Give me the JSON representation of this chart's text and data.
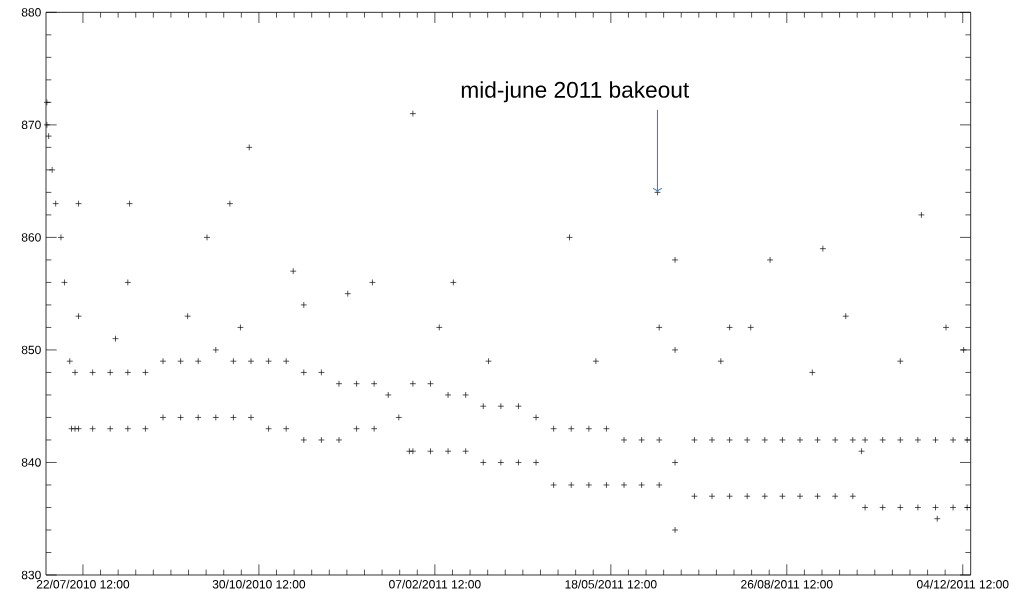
{
  "chart_data": {
    "type": "scatter",
    "marker": "cross",
    "grid": false,
    "xlim": [
      "2010-07-01T12:00",
      "2011-12-09T00:00"
    ],
    "xticks": [
      {
        "value": "2010-07-22T12:00",
        "label": "22/07/2010 12:00"
      },
      {
        "value": "2010-10-30T12:00",
        "label": "30/10/2010 12:00"
      },
      {
        "value": "2011-02-07T12:00",
        "label": "07/02/2011 12:00"
      },
      {
        "value": "2011-05-18T12:00",
        "label": "18/05/2011 12:00"
      },
      {
        "value": "2011-08-26T12:00",
        "label": "26/08/2011 12:00"
      },
      {
        "value": "2011-12-04T12:00",
        "label": "04/12/2011 12:00"
      }
    ],
    "ylim": [
      830,
      880
    ],
    "yticks": [
      830,
      840,
      850,
      860,
      870,
      880
    ],
    "annotations": [
      {
        "text": "mid-june 2011 bakeout",
        "x": "2011-06-14",
        "y": 864
      }
    ],
    "series": [
      {
        "color": "#000000",
        "x": [
          "2010-07-02",
          "2010-07-02",
          "2010-07-03",
          "2010-07-05",
          "2010-07-07",
          "2010-07-10",
          "2010-07-12",
          "2010-07-15",
          "2010-07-16",
          "2010-07-20",
          "2010-07-20",
          "2010-07-20",
          "2010-07-18",
          "2010-07-18",
          "2010-07-28",
          "2010-07-28",
          "2010-08-07",
          "2010-08-07",
          "2010-08-17",
          "2010-08-17",
          "2010-08-27",
          "2010-08-27",
          "2010-09-06",
          "2010-09-06",
          "2010-09-16",
          "2010-09-16",
          "2010-09-26",
          "2010-09-26",
          "2010-10-06",
          "2010-10-06",
          "2010-10-16",
          "2010-10-16",
          "2010-10-26",
          "2010-10-26",
          "2010-11-05",
          "2010-11-05",
          "2010-11-15",
          "2010-11-15",
          "2010-11-25",
          "2010-11-25",
          "2010-12-05",
          "2010-12-05",
          "2010-12-15",
          "2010-12-15",
          "2010-12-25",
          "2010-12-25",
          "2011-01-04",
          "2011-01-04",
          "2011-01-12",
          "2011-01-18",
          "2011-01-24",
          "2011-01-26",
          "2011-01-26",
          "2011-02-05",
          "2011-02-05",
          "2011-02-15",
          "2011-02-15",
          "2011-02-25",
          "2011-02-25",
          "2011-03-07",
          "2011-03-07",
          "2011-03-17",
          "2011-03-17",
          "2011-03-27",
          "2011-03-27",
          "2011-04-06",
          "2011-04-06",
          "2011-04-16",
          "2011-04-16",
          "2011-04-26",
          "2011-04-26",
          "2011-05-06",
          "2011-05-06",
          "2011-05-16",
          "2011-05-16",
          "2011-05-26",
          "2011-05-26",
          "2011-06-05",
          "2011-06-05",
          "2011-06-15",
          "2011-06-15",
          "2011-06-24",
          "2011-06-24",
          "2011-06-24",
          "2011-06-24",
          "2011-07-05",
          "2011-07-05",
          "2011-07-15",
          "2011-07-15",
          "2011-07-25",
          "2011-07-25",
          "2011-08-04",
          "2011-08-04",
          "2011-08-14",
          "2011-08-14",
          "2011-08-24",
          "2011-08-24",
          "2011-09-03",
          "2011-09-03",
          "2011-09-13",
          "2011-09-13",
          "2011-09-23",
          "2011-09-23",
          "2011-10-03",
          "2011-10-03",
          "2011-10-08",
          "2011-10-10",
          "2011-10-10",
          "2011-10-20",
          "2011-10-20",
          "2011-10-30",
          "2011-10-30",
          "2011-11-09",
          "2011-11-09",
          "2011-11-19",
          "2011-11-19",
          "2011-11-20",
          "2011-11-29",
          "2011-11-29",
          "2011-12-07",
          "2011-12-07",
          "2010-08-18",
          "2010-08-17",
          "2010-10-01",
          "2010-10-14",
          "2010-10-25",
          "2010-11-19",
          "2011-01-26",
          "2011-02-18",
          "2011-01-03",
          "2011-04-25",
          "2011-08-17",
          "2011-09-16",
          "2011-11-11",
          "2011-09-29",
          "2011-08-06",
          "2011-07-25",
          "2010-08-10",
          "2010-09-20",
          "2010-10-20",
          "2010-11-25",
          "2010-12-20",
          "2011-02-10",
          "2011-03-10",
          "2011-05-10",
          "2011-06-15",
          "2011-07-20",
          "2011-09-10",
          "2011-10-30",
          "2011-11-25",
          "2011-12-05",
          "2011-06-14"
        ],
        "values": [
          872,
          870,
          869,
          866,
          863,
          860,
          856,
          849,
          843,
          863,
          853,
          843,
          848,
          843,
          848,
          843,
          848,
          843,
          848,
          843,
          848,
          843,
          849,
          844,
          849,
          844,
          849,
          844,
          850,
          844,
          849,
          844,
          849,
          844,
          849,
          843,
          849,
          843,
          848,
          842,
          848,
          842,
          847,
          842,
          847,
          843,
          847,
          843,
          846,
          844,
          841,
          847,
          841,
          847,
          841,
          846,
          841,
          846,
          841,
          845,
          840,
          845,
          840,
          845,
          840,
          844,
          840,
          843,
          838,
          843,
          838,
          843,
          838,
          843,
          838,
          842,
          838,
          842,
          838,
          842,
          838,
          858,
          850,
          840,
          834,
          842,
          837,
          842,
          837,
          842,
          837,
          842,
          837,
          842,
          837,
          842,
          837,
          842,
          837,
          842,
          837,
          842,
          837,
          842,
          837,
          841,
          842,
          836,
          842,
          836,
          842,
          836,
          842,
          836,
          842,
          836,
          835,
          842,
          836,
          842,
          836,
          863,
          856,
          860,
          863,
          868,
          857,
          871,
          856,
          856,
          860,
          858,
          859,
          862,
          853,
          852,
          852,
          851,
          853,
          852,
          854,
          855,
          852,
          849,
          849,
          852,
          849,
          848,
          849,
          852,
          850,
          864
        ]
      }
    ]
  }
}
